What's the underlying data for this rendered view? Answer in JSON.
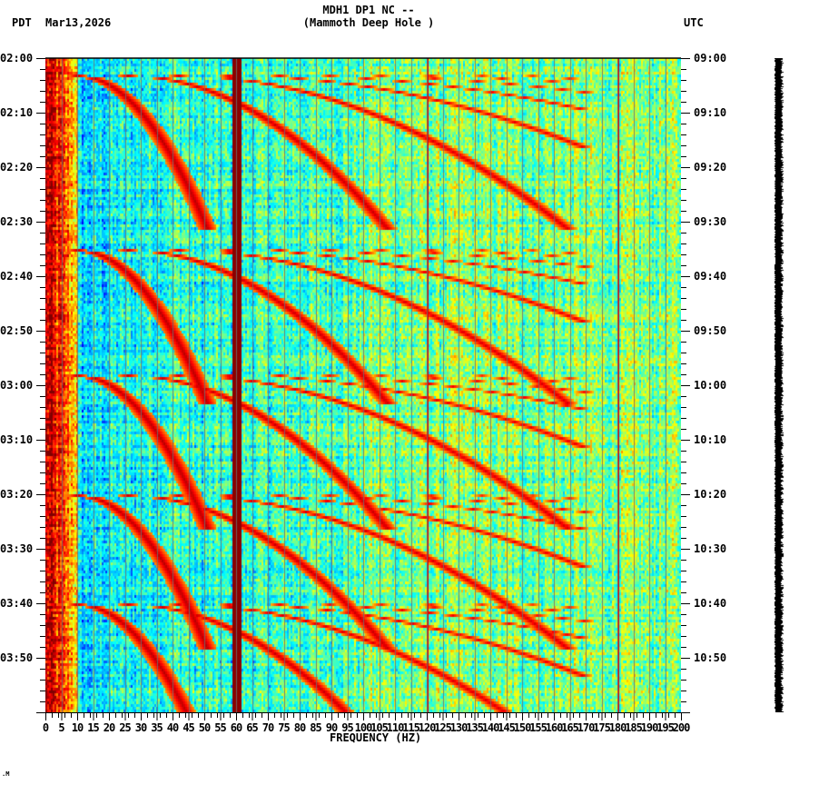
{
  "header": {
    "title_line1": "MDH1 DP1 NC --",
    "title_line2": "(Mammoth Deep Hole )",
    "left_timezone": "PDT",
    "date": "Mar13,2026",
    "right_timezone": "UTC"
  },
  "footnote": ".M",
  "chart_data": {
    "type": "heatmap",
    "title": "MDH1 DP1 NC -- (Mammoth Deep Hole )",
    "xlabel": "FREQUENCY (HZ)",
    "ylabel_left": "PDT",
    "ylabel_right": "UTC",
    "xlim": [
      0,
      200
    ],
    "x_ticks": [
      0,
      5,
      10,
      15,
      20,
      25,
      30,
      35,
      40,
      45,
      50,
      55,
      60,
      65,
      70,
      75,
      80,
      85,
      90,
      95,
      100,
      105,
      110,
      115,
      120,
      125,
      130,
      135,
      140,
      145,
      150,
      155,
      160,
      165,
      170,
      175,
      180,
      185,
      190,
      195,
      200
    ],
    "y_ticks_left": [
      "02:00",
      "02:10",
      "02:20",
      "02:30",
      "02:40",
      "02:50",
      "03:00",
      "03:10",
      "03:20",
      "03:30",
      "03:40",
      "03:50"
    ],
    "y_ticks_right": [
      "09:00",
      "09:10",
      "09:20",
      "09:30",
      "09:40",
      "09:50",
      "10:00",
      "10:10",
      "10:20",
      "10:30",
      "10:40",
      "10:50"
    ],
    "time_span_minutes": 120,
    "grid": "vertical lines every 5 Hz",
    "colormap": [
      "#0000ff",
      "#00a0ff",
      "#00ffff",
      "#80ff80",
      "#ffff00",
      "#ff8000",
      "#ff0000",
      "#800000"
    ],
    "features": {
      "persistent_lines_hz": [
        60,
        120,
        180
      ],
      "low_freq_energy_hz": [
        0,
        10
      ],
      "sweep_event_start_minutes": [
        3,
        35,
        58,
        80,
        100
      ],
      "sweep_harmonic_count": 10
    }
  }
}
